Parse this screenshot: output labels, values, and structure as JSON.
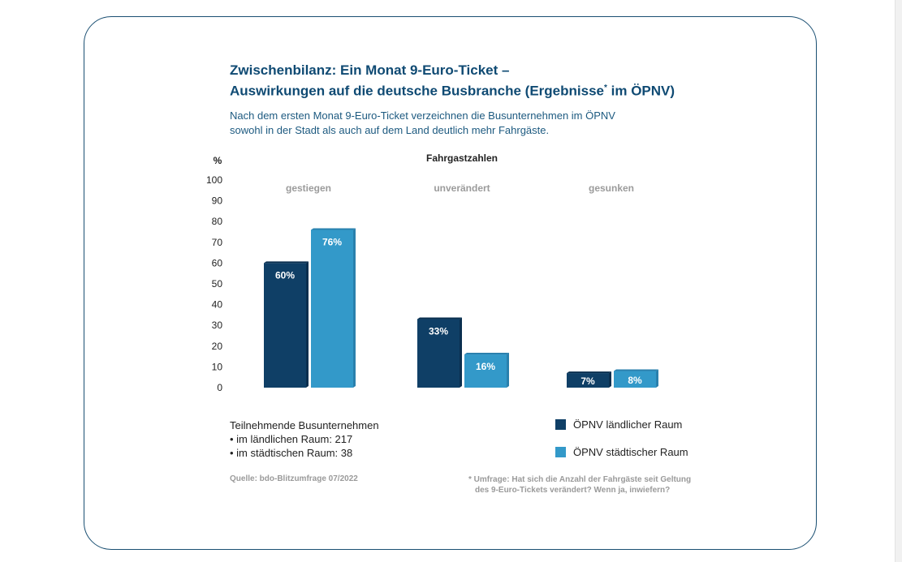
{
  "title_line1": "Zwischenbilanz: Ein Monat 9-Euro-Ticket –",
  "title_line2_pre": "Auswirkungen auf die deutsche Busbranche (Ergebnisse",
  "title_line2_sup": "*",
  "title_line2_post": " im ÖPNV)",
  "subtitle_line1": "Nach dem ersten Monat 9-Euro-Ticket verzeichnen die Busunternehmen im ÖPNV",
  "subtitle_line2": "sowohl in der Stadt als auch auf dem Land deutlich mehr Fahrgäste.",
  "participants": {
    "heading": "Teilnehmende Busunternehmen",
    "rural": "• im ländlichen Raum: 217",
    "urban": "• im städtischen Raum: 38"
  },
  "source": "Quelle: bdo-Blitzumfrage 07/2022",
  "footnote_line1": "* Umfrage: Hat sich die Anzahl der Fahrgäste seit Geltung",
  "footnote_line2": "des 9-Euro-Tickets verändert? Wenn ja, inwiefern?",
  "colors": {
    "rural": "#0f3f66",
    "urban": "#3399c9"
  },
  "chart_data": {
    "type": "bar",
    "title": "Fahrgastzahlen",
    "ylabel": "%",
    "ylim": [
      0,
      100
    ],
    "yticks": [
      0,
      10,
      20,
      30,
      40,
      50,
      60,
      70,
      80,
      90,
      100
    ],
    "categories": [
      "gestiegen",
      "unverändert",
      "gesunken"
    ],
    "series": [
      {
        "name": "ÖPNV ländlicher Raum",
        "values": [
          60,
          33,
          7
        ],
        "labels": [
          "60%",
          "33%",
          "7%"
        ]
      },
      {
        "name": "ÖPNV städtischer Raum",
        "values": [
          76,
          16,
          8
        ],
        "labels": [
          "76%",
          "16%",
          "8%"
        ]
      }
    ],
    "legend": "bottom-right"
  }
}
